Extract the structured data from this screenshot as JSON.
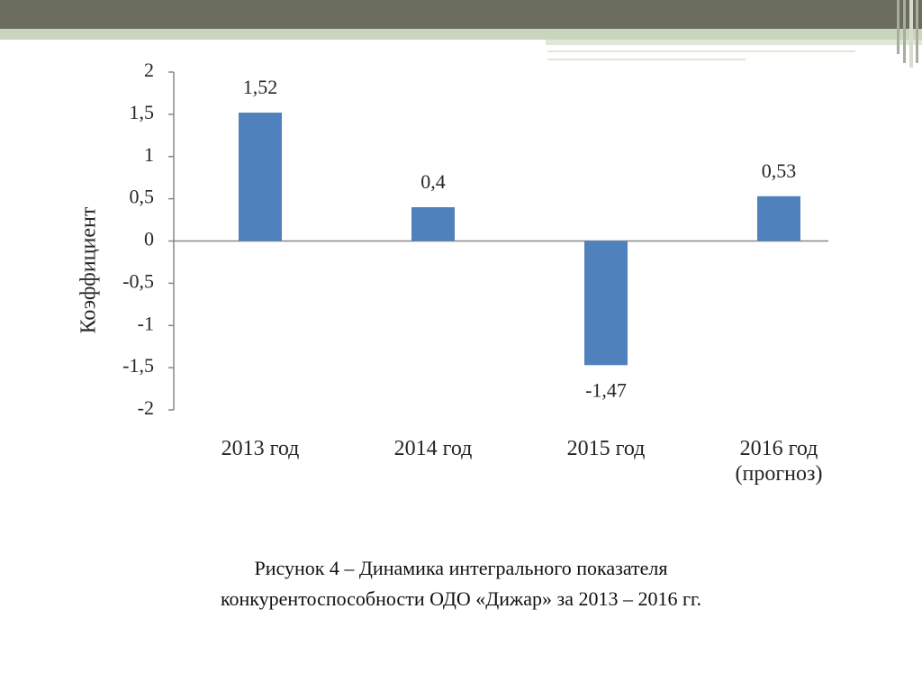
{
  "chart_data": {
    "type": "bar",
    "y_label": "Коэффициент",
    "categories": [
      "2013 год",
      "2014 год",
      "2015 год",
      "2016 год (прогноз)"
    ],
    "values": [
      1.52,
      0.4,
      -1.47,
      0.53
    ],
    "value_labels": [
      "1,52",
      "0,4",
      "-1,47",
      "0,53"
    ],
    "color": "#4f81bd",
    "ylim": [
      -2,
      2
    ],
    "yticks": [
      -2,
      {
        "value": -1.5,
        "label": "-1,5"
      },
      -1,
      {
        "value": -0.5,
        "label": "-0,5"
      },
      0,
      {
        "value": 0.5,
        "label": "0,5"
      },
      1,
      {
        "value": 1.5,
        "label": "1,5"
      },
      2
    ],
    "grid": false
  },
  "caption": [
    "Рисунок 4 – Динамика интегрального показателя",
    "конкурентоспособности ОДО «Дижар» за 2013 – 2016 гг."
  ]
}
